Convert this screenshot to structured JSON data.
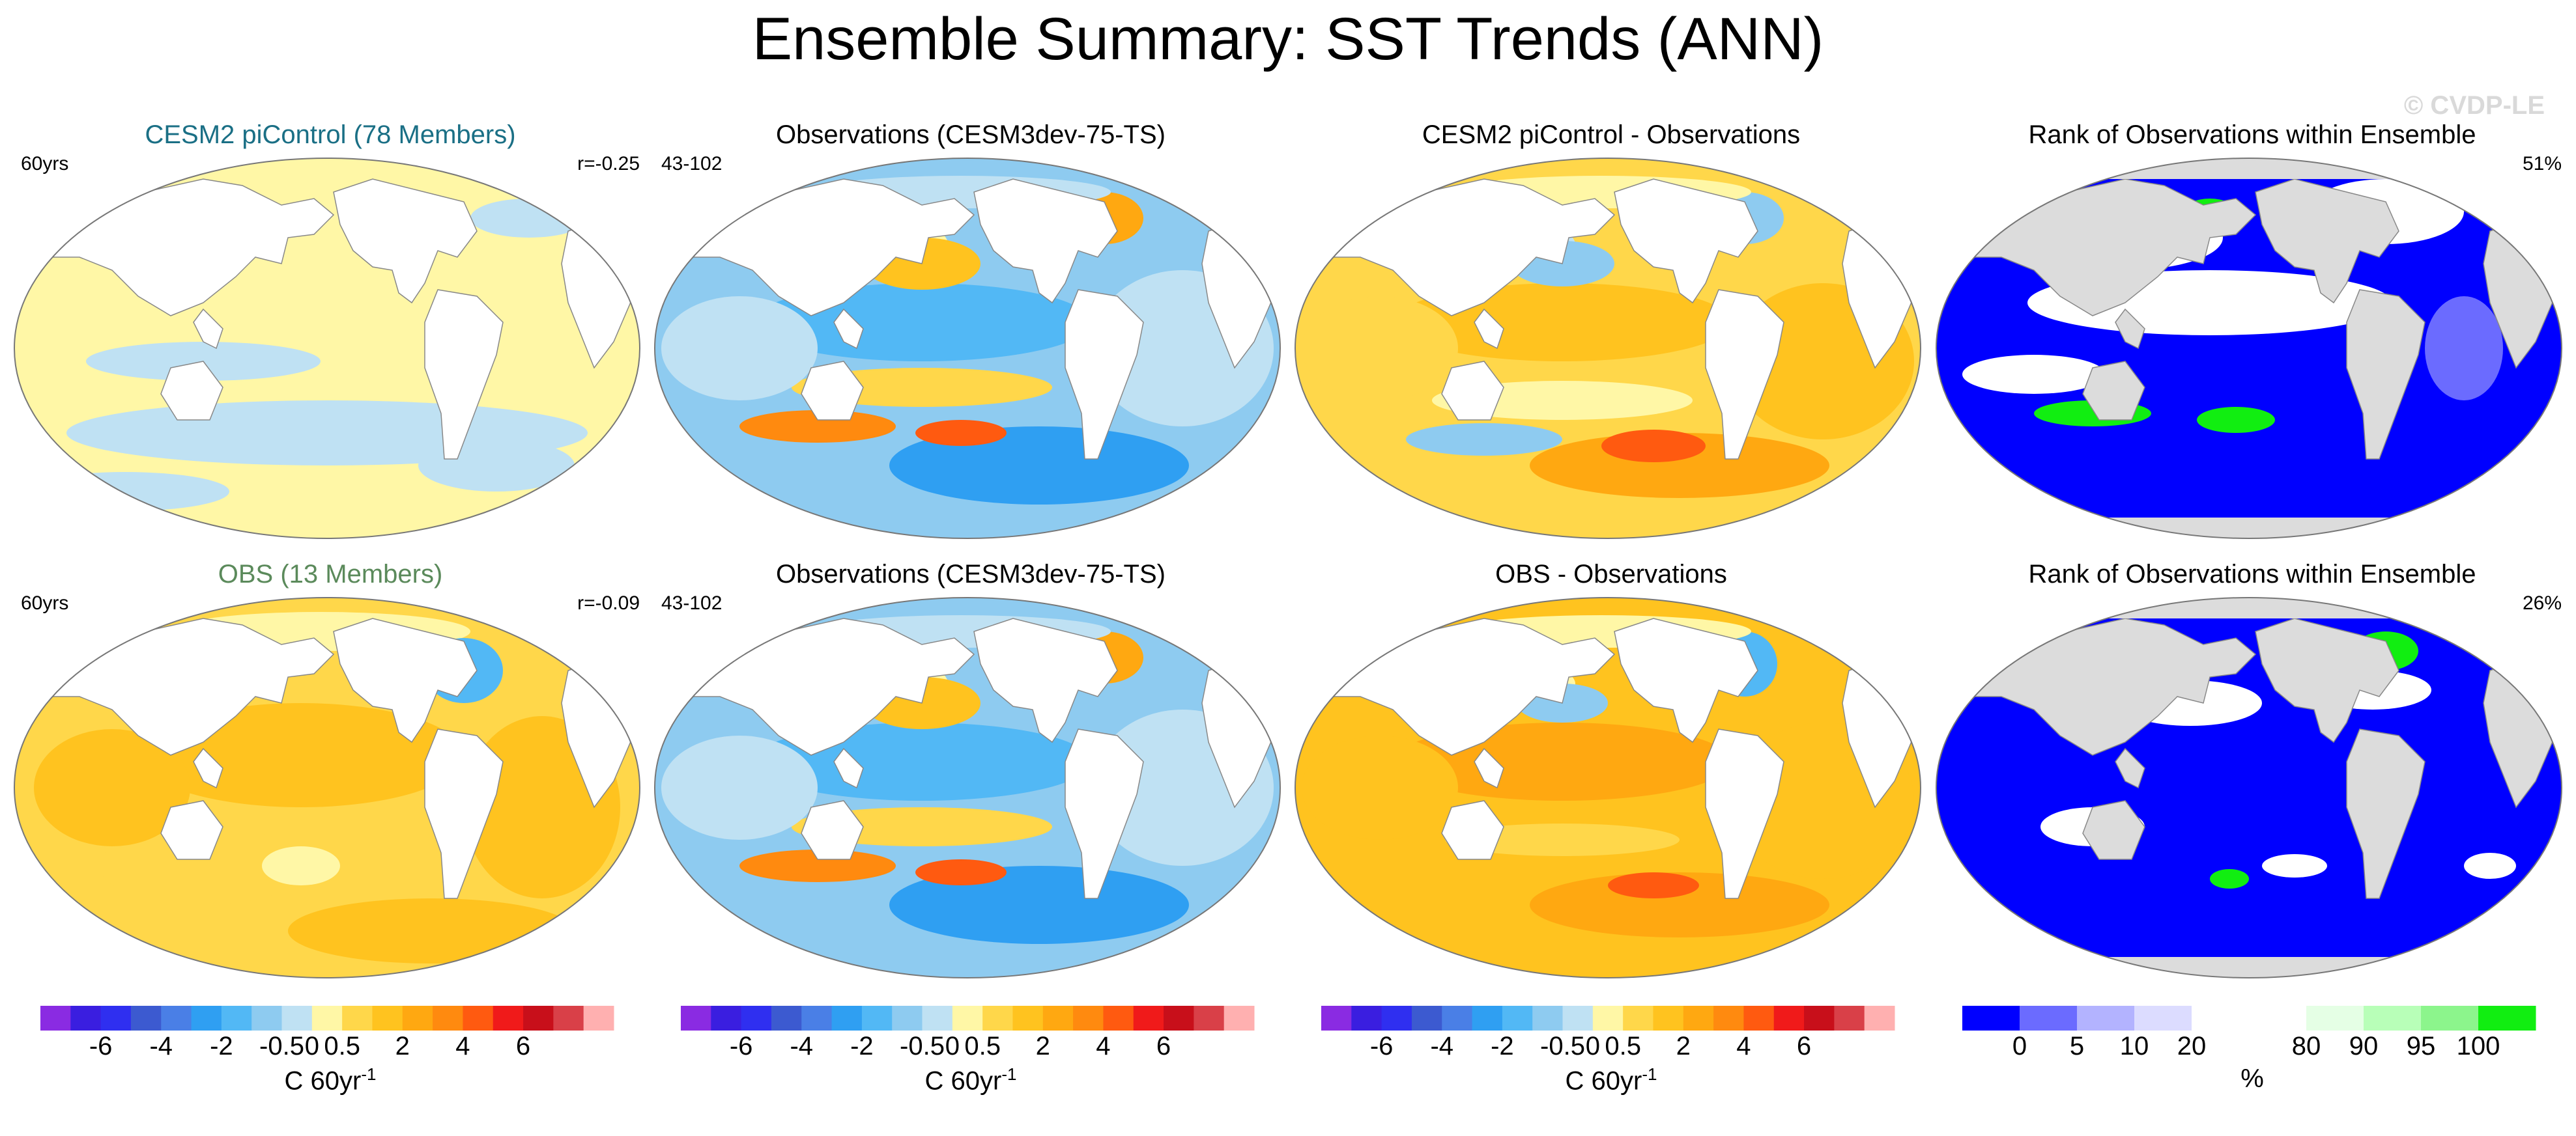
{
  "title": "Ensemble Summary: SST Trends (ANN)",
  "watermark": "© CVDP-LE",
  "panels": [
    {
      "title": "CESM2 piControl (78 Members)",
      "title_color": "#1a6f85",
      "left_label": "60yrs",
      "right_label": "r=-0.25",
      "style": "pale"
    },
    {
      "title": "Observations (CESM3dev-75-TS)",
      "title_color": "#000000",
      "left_label": "43-102",
      "right_label": "",
      "style": "obs"
    },
    {
      "title": "CESM2 piControl - Observations",
      "title_color": "#000000",
      "left_label": "",
      "right_label": "",
      "style": "diff"
    },
    {
      "title": "Rank of Observations within Ensemble",
      "title_color": "#000000",
      "left_label": "",
      "right_label": "51%",
      "style": "rank1"
    },
    {
      "title": "OBS (13 Members)",
      "title_color": "#5b8a5b",
      "left_label": "60yrs",
      "right_label": "r=-0.09",
      "style": "warm"
    },
    {
      "title": "Observations (CESM3dev-75-TS)",
      "title_color": "#000000",
      "left_label": "43-102",
      "right_label": "",
      "style": "obs"
    },
    {
      "title": "OBS - Observations",
      "title_color": "#000000",
      "left_label": "",
      "right_label": "",
      "style": "diff2"
    },
    {
      "title": "Rank of Observations within Ensemble",
      "title_color": "#000000",
      "left_label": "",
      "right_label": "26%",
      "style": "rank2"
    }
  ],
  "trend_colorbar": {
    "colors": [
      "#8a2be2",
      "#3a1ee0",
      "#2f2ff0",
      "#3c5ad0",
      "#4a7fe6",
      "#2f9ff2",
      "#52b8f5",
      "#8ecbf0",
      "#bfe1f3",
      "#fff7a6",
      "#ffd74a",
      "#ffc31f",
      "#ffa811",
      "#ff8a0f",
      "#ff5a10",
      "#f01a1a",
      "#c80f1a",
      "#d94048",
      "#ffb0b0"
    ],
    "tick_labels": [
      "-6",
      "-4",
      "-2",
      "-0.5",
      "0",
      "0.5",
      "2",
      "4",
      "6"
    ],
    "unit": "C 60yr",
    "unit_exp": "-1"
  },
  "rank_colorbar": {
    "colors": [
      "#0000ff",
      "#6b6bff",
      "#b3b3ff",
      "#dcdcff",
      "#ffffff",
      "#ffffff",
      "#e5ffe5",
      "#b8ffb8",
      "#8cf58c",
      "#11ee11"
    ],
    "tick_labels": [
      "0",
      "5",
      "10",
      "20",
      "80",
      "90",
      "95",
      "100"
    ],
    "unit": "%"
  }
}
